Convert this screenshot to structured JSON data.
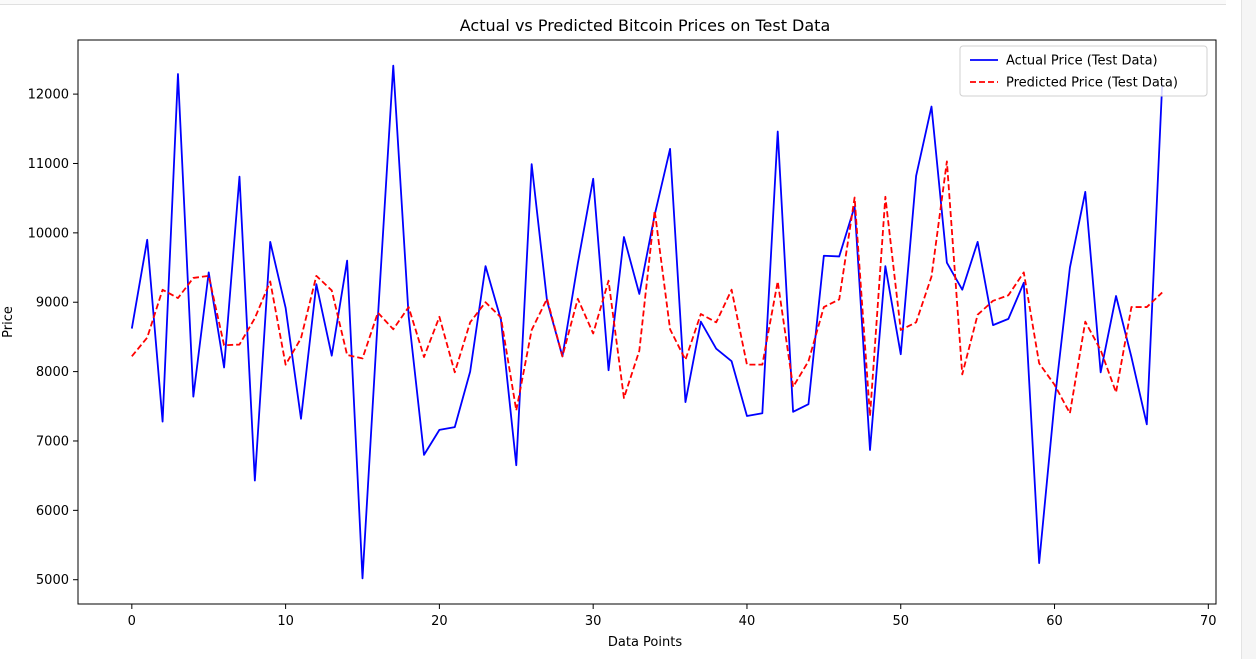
{
  "chart_data": {
    "type": "line",
    "title": "Actual vs Predicted Bitcoin Prices on Test Data",
    "xlabel": "Data Points",
    "ylabel": "Price",
    "xlim": [
      -3.5,
      70.5
    ],
    "ylim": [
      4650,
      12780
    ],
    "xticks": [
      0,
      10,
      20,
      30,
      40,
      50,
      60,
      70
    ],
    "yticks": [
      5000,
      6000,
      7000,
      8000,
      9000,
      10000,
      11000,
      12000
    ],
    "grid": false,
    "legend_position": "top-right",
    "series": [
      {
        "name": "Actual Price (Test Data)",
        "color": "#0000ff",
        "style": "solid",
        "values": [
          8620,
          9900,
          7280,
          12290,
          7640,
          9430,
          8060,
          10810,
          6430,
          9870,
          8920,
          7320,
          9260,
          8230,
          9600,
          5020,
          8780,
          12410,
          8800,
          6800,
          7160,
          7200,
          8000,
          9520,
          8750,
          6650,
          10990,
          9020,
          8220,
          9560,
          10780,
          8020,
          9940,
          9120,
          10260,
          11210,
          7560,
          8720,
          8330,
          8150,
          7360,
          7400,
          11460,
          7420,
          7530,
          9670,
          9660,
          10380,
          6870,
          9520,
          8250,
          10820,
          11820,
          9570,
          9180,
          9870,
          8670,
          8760,
          9280,
          5240,
          7560,
          9500,
          10590,
          7990,
          9090,
          8210,
          7240,
          12140
        ]
      },
      {
        "name": "Predicted Price (Test Data)",
        "color": "#ff0000",
        "style": "dashed",
        "values": [
          8220,
          8490,
          9180,
          9060,
          9350,
          9380,
          8380,
          8390,
          8770,
          9300,
          8100,
          8480,
          9380,
          9170,
          8240,
          8190,
          8850,
          8610,
          8930,
          8210,
          8790,
          7990,
          8710,
          9000,
          8780,
          7440,
          8600,
          9050,
          8220,
          9050,
          8550,
          9310,
          7620,
          8300,
          10320,
          8610,
          8170,
          8830,
          8710,
          9180,
          8100,
          8100,
          9300,
          7780,
          8150,
          8930,
          9040,
          10510,
          7360,
          10520,
          8600,
          8710,
          9370,
          11030,
          7960,
          8820,
          9020,
          9100,
          9430,
          8120,
          7810,
          7400,
          8720,
          8310,
          7700,
          8930,
          8930,
          9140
        ]
      }
    ]
  }
}
